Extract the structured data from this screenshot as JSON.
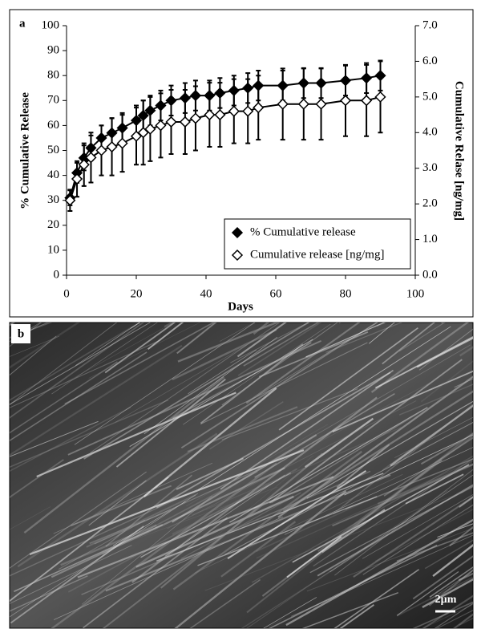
{
  "chart_data": {
    "type": "line",
    "panel_label": "a",
    "x_label": "Days",
    "y_label": "% Cumulative Release",
    "y2_label": "Cumulative Relase [ng/mg]",
    "x": [
      1,
      3,
      5,
      7,
      10,
      13,
      16,
      20,
      22,
      24,
      27,
      30,
      34,
      37,
      41,
      44,
      48,
      52,
      55,
      62,
      68,
      73,
      80,
      86,
      90
    ],
    "series": [
      {
        "name": "% Cumulative release",
        "color": "#000000",
        "filled": true,
        "values": [
          31,
          41,
          47,
          51,
          55,
          57,
          59,
          62,
          64,
          66,
          68,
          70,
          71,
          72,
          72,
          73,
          74,
          75,
          76,
          76,
          77,
          77,
          78,
          79,
          80
        ],
        "errors": [
          3,
          4,
          5,
          5,
          5,
          6,
          6,
          6,
          6,
          6,
          6,
          6,
          6,
          6,
          6,
          6,
          6,
          6,
          6,
          6,
          6,
          6,
          6,
          6,
          6
        ]
      },
      {
        "name": "Cumulative release [ng/mg]",
        "color": "#000000",
        "filled": false,
        "axis": "y2",
        "values": [
          2.1,
          2.7,
          3.1,
          3.3,
          3.5,
          3.6,
          3.7,
          3.9,
          4.0,
          4.1,
          4.2,
          4.3,
          4.3,
          4.4,
          4.5,
          4.5,
          4.6,
          4.6,
          4.7,
          4.8,
          4.8,
          4.8,
          4.9,
          4.9,
          5.0
        ],
        "errors": [
          0.3,
          0.5,
          0.6,
          0.7,
          0.7,
          0.8,
          0.8,
          0.8,
          0.9,
          0.9,
          0.9,
          0.9,
          0.9,
          0.9,
          0.9,
          0.9,
          0.9,
          0.9,
          0.9,
          1.0,
          1.0,
          1.0,
          1.0,
          1.0,
          1.0
        ]
      }
    ],
    "xlim": [
      0,
      100
    ],
    "xticks": [
      0,
      20,
      40,
      60,
      80,
      100
    ],
    "ylim": [
      0,
      100
    ],
    "yticks": [
      0,
      10,
      20,
      30,
      40,
      50,
      60,
      70,
      80,
      90,
      100
    ],
    "y2lim": [
      0,
      7
    ],
    "y2ticks": [
      {
        "value": 0,
        "label": "0.0"
      },
      {
        "value": 1,
        "label": "1.0"
      },
      {
        "value": 2,
        "label": "2.0"
      },
      {
        "value": 3,
        "label": "3.0"
      },
      {
        "value": 4,
        "label": "4.0"
      },
      {
        "value": 5,
        "label": "5.0"
      },
      {
        "value": 6,
        "label": "6.0"
      },
      {
        "value": 7,
        "label": "7.0"
      }
    ],
    "legend": "lower right"
  },
  "image": {
    "panel_label": "b",
    "scale_bar": "2µm"
  }
}
